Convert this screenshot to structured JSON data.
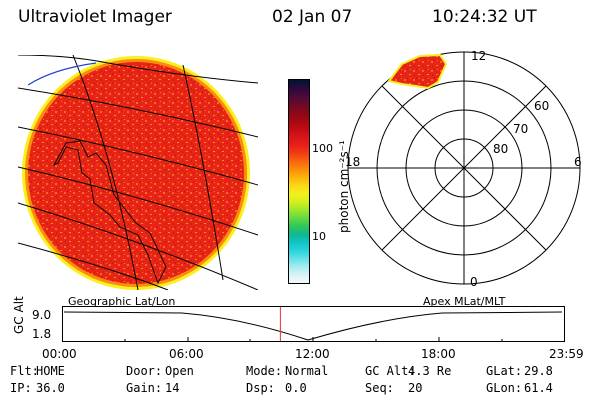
{
  "header": {
    "instrument": "Ultraviolet Imager",
    "date": "02 Jan 07",
    "time": "10:24:32 UT"
  },
  "colorbar": {
    "unit_label": "photon cm⁻²s⁻¹",
    "tick_labels": [
      "100",
      "10"
    ],
    "colors": [
      "#00142e",
      "#2a0a3c",
      "#4a0a3a",
      "#6a0a2a",
      "#8a0818",
      "#a40812",
      "#c00c10",
      "#d8141a",
      "#e82018",
      "#f03c14",
      "#f86410",
      "#fc8c0c",
      "#fcb40c",
      "#fcd814",
      "#f4f01c",
      "#d4f020",
      "#9ce82c",
      "#64d840",
      "#30c858",
      "#10b890",
      "#10c4c4",
      "#28d4dc",
      "#64e0e8",
      "#a4ecf0",
      "#d8f4f4",
      "#f4f8f8"
    ]
  },
  "left_panel": {
    "caption": "Geographic Lat/Lon"
  },
  "right_panel": {
    "caption": "Apex MLat/MLT",
    "mlt_labels": {
      "top": "12",
      "bottom": "0",
      "left": "18",
      "right": "6"
    },
    "mlat_labels": [
      "80",
      "70",
      "60"
    ]
  },
  "timeline": {
    "axis_label": "GC Alt",
    "y_ticks": [
      "9.0",
      "1.8"
    ],
    "x_ticks": [
      "00:00",
      "06:00",
      "12:00",
      "18:00",
      "23:59"
    ],
    "current_fraction": 0.434
  },
  "status": [
    [
      {
        "k": "Flt:",
        "v": "HOME"
      },
      {
        "k": "Door:",
        "v": "Open"
      },
      {
        "k": "Mode:",
        "v": "Normal"
      },
      {
        "k": "GC Alt:",
        "v": "4.3 Re"
      },
      {
        "k": "GLat:",
        "v": "29.8"
      }
    ],
    [
      {
        "k": "IP:",
        "v": "36.0"
      },
      {
        "k": "Gain:",
        "v": "14"
      },
      {
        "k": "Dsp:",
        "v": "0.0"
      },
      {
        "k": "Seq:",
        "v": "20"
      },
      {
        "k": "GLon:",
        "v": "61.4"
      }
    ]
  ]
}
